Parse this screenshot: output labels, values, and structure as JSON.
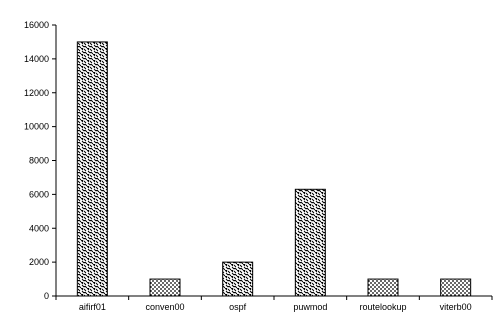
{
  "chart_data": {
    "type": "bar",
    "title": "",
    "xlabel": "",
    "ylabel": "",
    "categories": [
      "aifirf01",
      "conven00",
      "ospf",
      "puwmod",
      "routelookup",
      "viterb00"
    ],
    "values": [
      15000,
      1000,
      2000,
      6300,
      1000,
      1000
    ],
    "ylim": [
      0,
      16000
    ],
    "yticks": [
      0,
      2000,
      4000,
      6000,
      8000,
      10000,
      12000,
      14000,
      16000
    ],
    "grid": false,
    "legend": "none",
    "colors": {
      "bar_fill": "#ffffff",
      "bar_pattern": "#000000",
      "axis": "#000000"
    }
  }
}
